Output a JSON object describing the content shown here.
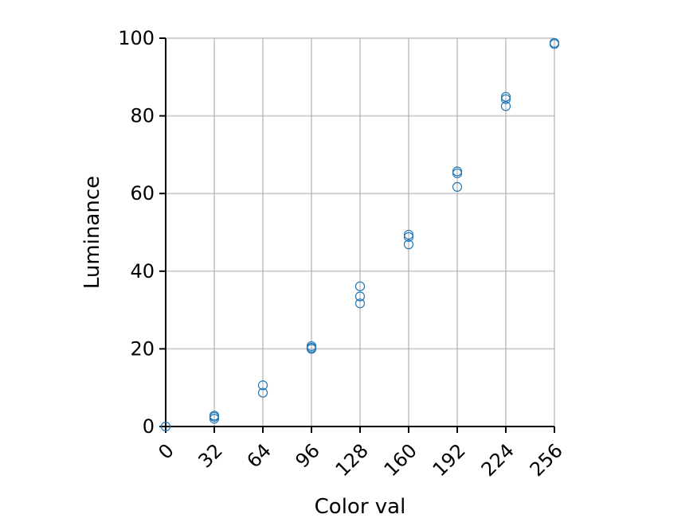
{
  "chart_data": {
    "type": "scatter",
    "xlabel": "Color val",
    "ylabel": "Luminance",
    "xlim": [
      0,
      256
    ],
    "ylim": [
      0,
      100
    ],
    "xticks": [
      0,
      32,
      64,
      96,
      128,
      160,
      192,
      224,
      256
    ],
    "yticks": [
      0,
      20,
      40,
      60,
      80,
      100
    ],
    "grid": true,
    "marker": "open-circle",
    "color": "#1f77b4",
    "points": [
      {
        "x": 0,
        "y": 0
      },
      {
        "x": 32,
        "y": 2.0
      },
      {
        "x": 32,
        "y": 2.5
      },
      {
        "x": 32,
        "y": 2.8
      },
      {
        "x": 64,
        "y": 8.7
      },
      {
        "x": 64,
        "y": 10.6
      },
      {
        "x": 96,
        "y": 20.0
      },
      {
        "x": 96,
        "y": 20.3
      },
      {
        "x": 96,
        "y": 20.7
      },
      {
        "x": 128,
        "y": 31.7
      },
      {
        "x": 128,
        "y": 33.5
      },
      {
        "x": 128,
        "y": 36.1
      },
      {
        "x": 160,
        "y": 46.9
      },
      {
        "x": 160,
        "y": 48.8
      },
      {
        "x": 160,
        "y": 49.4
      },
      {
        "x": 192,
        "y": 61.7
      },
      {
        "x": 192,
        "y": 65.2
      },
      {
        "x": 192,
        "y": 65.7
      },
      {
        "x": 224,
        "y": 82.5
      },
      {
        "x": 224,
        "y": 84.3
      },
      {
        "x": 224,
        "y": 84.9
      },
      {
        "x": 256,
        "y": 98.5
      },
      {
        "x": 256,
        "y": 98.8
      }
    ]
  }
}
